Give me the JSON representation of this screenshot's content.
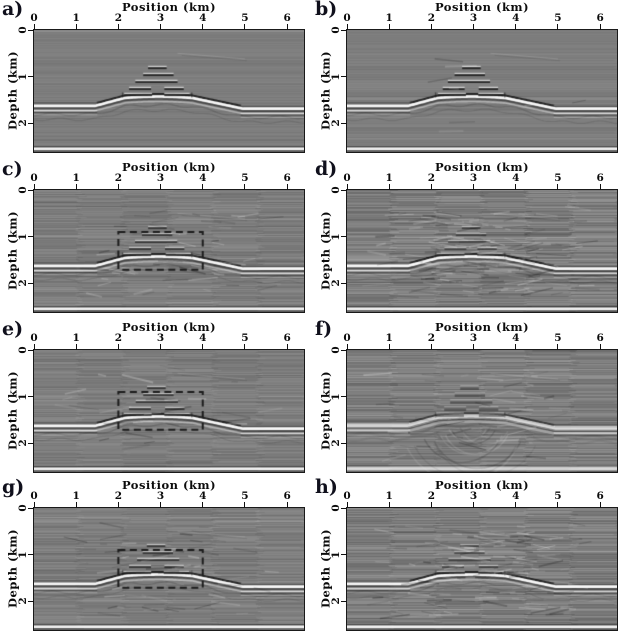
{
  "figure": {
    "axes": {
      "x_title": "Position (km)",
      "y_title": "Depth (km)",
      "x_ticks": [
        "0",
        "1",
        "2",
        "3",
        "4",
        "5",
        "6"
      ],
      "y_ticks": [
        "0",
        "1",
        "2"
      ]
    },
    "colors": {
      "page_background": "#ffffff",
      "image_gray": "#7e7e7e",
      "axis_ink": "#0c0c0c",
      "dashed_box": "#1c1c1c"
    },
    "box_km": {
      "x": [
        2.0,
        4.0
      ],
      "depth": [
        0.9,
        1.71
      ]
    },
    "panels": [
      {
        "label": "a)",
        "seed": 11,
        "box": false,
        "striation": 0.05,
        "coherent": 0.1,
        "dip": 0,
        "arcs": 0,
        "soft": false
      },
      {
        "label": "b)",
        "seed": 22,
        "box": false,
        "striation": 0.055,
        "coherent": 0.11,
        "dip": 8,
        "arcs": 0,
        "soft": false
      },
      {
        "label": "c)",
        "seed": 33,
        "box": true,
        "striation": 0.1,
        "coherent": 0.14,
        "dip": 45,
        "arcs": 0,
        "soft": false
      },
      {
        "label": "d)",
        "seed": 44,
        "box": false,
        "striation": 0.16,
        "coherent": 0.18,
        "dip": 150,
        "arcs": 0,
        "soft": false
      },
      {
        "label": "e)",
        "seed": 55,
        "box": true,
        "striation": 0.09,
        "coherent": 0.13,
        "dip": 25,
        "arcs": 0,
        "soft": false
      },
      {
        "label": "f)",
        "seed": 66,
        "box": false,
        "striation": 0.14,
        "coherent": 0.16,
        "dip": 40,
        "arcs": 12,
        "soft": true
      },
      {
        "label": "g)",
        "seed": 77,
        "box": true,
        "striation": 0.1,
        "coherent": 0.14,
        "dip": 55,
        "arcs": 0,
        "soft": false
      },
      {
        "label": "h)",
        "seed": 88,
        "box": false,
        "striation": 0.15,
        "coherent": 0.17,
        "dip": 120,
        "arcs": 0,
        "soft": false
      }
    ]
  },
  "chart_data": {
    "type": "heatmap",
    "title": "",
    "x": {
      "label": "Position (km)",
      "range": [
        0,
        6.4
      ],
      "ticks": [
        0,
        1,
        2,
        3,
        4,
        5,
        6
      ]
    },
    "y": {
      "label": "Depth (km)",
      "range": [
        0,
        2.62
      ],
      "ticks": [
        0,
        1,
        2
      ],
      "inverted": true
    },
    "grid": "off",
    "subplots": [
      {
        "label": "a)",
        "grid_position": [
          1,
          1
        ],
        "dashed_box": null,
        "noise_level": "low"
      },
      {
        "label": "b)",
        "grid_position": [
          1,
          2
        ],
        "dashed_box": null,
        "noise_level": "low"
      },
      {
        "label": "c)",
        "grid_position": [
          2,
          1
        ],
        "dashed_box": {
          "x_km": [
            2.0,
            4.0
          ],
          "depth_km": [
            0.9,
            1.71
          ]
        },
        "noise_level": "medium"
      },
      {
        "label": "d)",
        "grid_position": [
          2,
          2
        ],
        "dashed_box": null,
        "noise_level": "high"
      },
      {
        "label": "e)",
        "grid_position": [
          3,
          1
        ],
        "dashed_box": {
          "x_km": [
            2.0,
            4.0
          ],
          "depth_km": [
            0.9,
            1.71
          ]
        },
        "noise_level": "medium"
      },
      {
        "label": "f)",
        "grid_position": [
          3,
          2
        ],
        "dashed_box": null,
        "noise_level": "high"
      },
      {
        "label": "g)",
        "grid_position": [
          4,
          1
        ],
        "dashed_box": {
          "x_km": [
            2.0,
            4.0
          ],
          "depth_km": [
            0.9,
            1.71
          ]
        },
        "noise_level": "medium"
      },
      {
        "label": "h)",
        "grid_position": [
          4,
          2
        ],
        "dashed_box": null,
        "noise_level": "high"
      }
    ],
    "content": {
      "description": "Grayscale depth-migrated seismic sections of an anticline model, 8 variants of the same structure",
      "main_reflector_depth_km": {
        "left_flank": 1.64,
        "crest": 1.44,
        "right_flank": 1.7,
        "crest_center_x_km": 2.95,
        "flank_start_x_km": 1.45,
        "flank_end_x_km": 4.95
      },
      "layered_segments": {
        "center_x_km": 2.92,
        "depths_km": [
          0.82,
          0.97,
          1.12,
          1.27,
          1.4
        ],
        "half_widths_km": [
          0.22,
          0.36,
          0.5,
          0.64,
          0.78
        ]
      },
      "bottom_reflector_depth_km": 2.55,
      "background_gray": "#7e7e7e"
    }
  }
}
